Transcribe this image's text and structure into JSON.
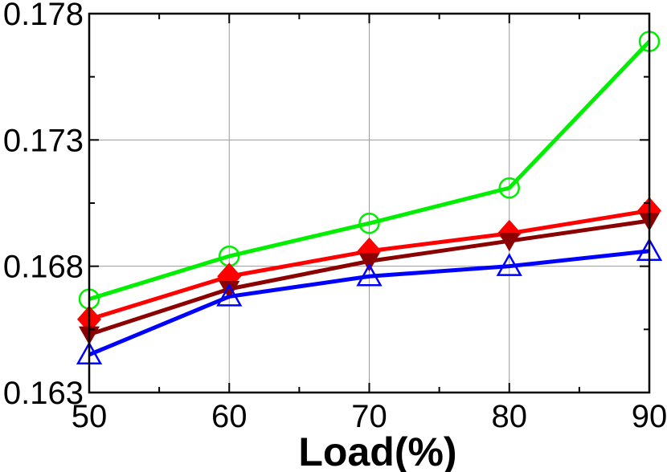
{
  "chart_data": {
    "type": "line",
    "title": "",
    "xlabel": "Load(%)",
    "ylabel": "",
    "x": [
      50,
      60,
      70,
      80,
      90
    ],
    "xticks": [
      "50",
      "60",
      "70",
      "80",
      "90"
    ],
    "yticks": [
      "0.163",
      "0.168",
      "0.173",
      "0.178"
    ],
    "xlim": [
      50,
      90
    ],
    "ylim": [
      0.163,
      0.178
    ],
    "grid": true,
    "legend": "none",
    "series": [
      {
        "color": "#00ee00",
        "marker": "circle-open",
        "values": [
          0.1667,
          0.1684,
          0.1697,
          0.1711,
          0.1769
        ]
      },
      {
        "color": "#ff0000",
        "marker": "diamond-filled",
        "values": [
          0.1659,
          0.1676,
          0.1686,
          0.1693,
          0.1702
        ]
      },
      {
        "color": "#8b0000",
        "marker": "down-triangle-filled",
        "values": [
          0.1653,
          0.1671,
          0.1682,
          0.169,
          0.1698
        ]
      },
      {
        "color": "#0000ff",
        "marker": "triangle-open",
        "values": [
          0.1645,
          0.1668,
          0.1676,
          0.168,
          0.1686
        ]
      }
    ]
  }
}
